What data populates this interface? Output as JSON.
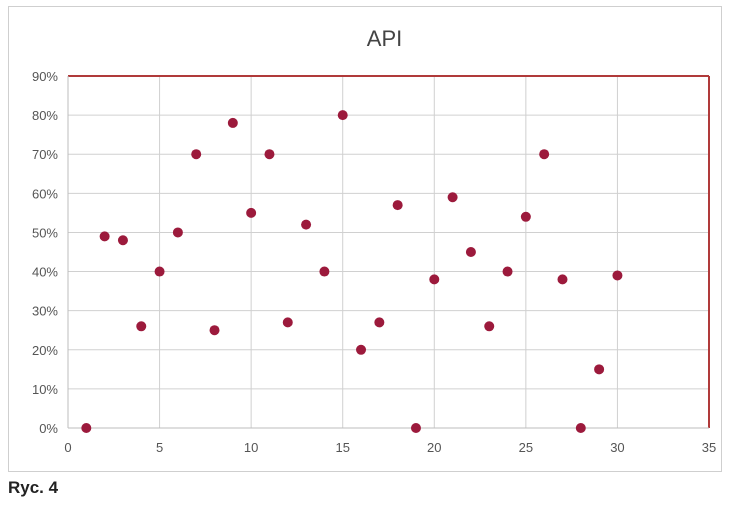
{
  "caption": "Ryc. 4",
  "colors": {
    "point": "#9c1a3c",
    "plot_border": "#b03a3a",
    "grid": "#d0d0d0"
  },
  "chart_data": {
    "type": "scatter",
    "title": "API",
    "xlabel": "",
    "ylabel": "",
    "xlim": [
      0,
      35
    ],
    "ylim": [
      0,
      0.9
    ],
    "x_ticks": [
      "0",
      "5",
      "10",
      "15",
      "20",
      "25",
      "30",
      "35"
    ],
    "y_ticks": [
      "0%",
      "10%",
      "20%",
      "30%",
      "40%",
      "50%",
      "60%",
      "70%",
      "80%",
      "90%"
    ],
    "grid": true,
    "points": [
      {
        "x": 1,
        "y": 0.0
      },
      {
        "x": 2,
        "y": 0.49
      },
      {
        "x": 3,
        "y": 0.48
      },
      {
        "x": 4,
        "y": 0.26
      },
      {
        "x": 5,
        "y": 0.4
      },
      {
        "x": 6,
        "y": 0.5
      },
      {
        "x": 7,
        "y": 0.7
      },
      {
        "x": 8,
        "y": 0.25
      },
      {
        "x": 9,
        "y": 0.78
      },
      {
        "x": 10,
        "y": 0.55
      },
      {
        "x": 11,
        "y": 0.7
      },
      {
        "x": 12,
        "y": 0.27
      },
      {
        "x": 13,
        "y": 0.52
      },
      {
        "x": 14,
        "y": 0.4
      },
      {
        "x": 15,
        "y": 0.8
      },
      {
        "x": 16,
        "y": 0.2
      },
      {
        "x": 17,
        "y": 0.27
      },
      {
        "x": 18,
        "y": 0.57
      },
      {
        "x": 19,
        "y": 0.0
      },
      {
        "x": 20,
        "y": 0.38
      },
      {
        "x": 21,
        "y": 0.59
      },
      {
        "x": 22,
        "y": 0.45
      },
      {
        "x": 23,
        "y": 0.26
      },
      {
        "x": 24,
        "y": 0.4
      },
      {
        "x": 25,
        "y": 0.54
      },
      {
        "x": 26,
        "y": 0.7
      },
      {
        "x": 27,
        "y": 0.38
      },
      {
        "x": 28,
        "y": 0.0
      },
      {
        "x": 29,
        "y": 0.15
      },
      {
        "x": 30,
        "y": 0.39
      }
    ]
  }
}
